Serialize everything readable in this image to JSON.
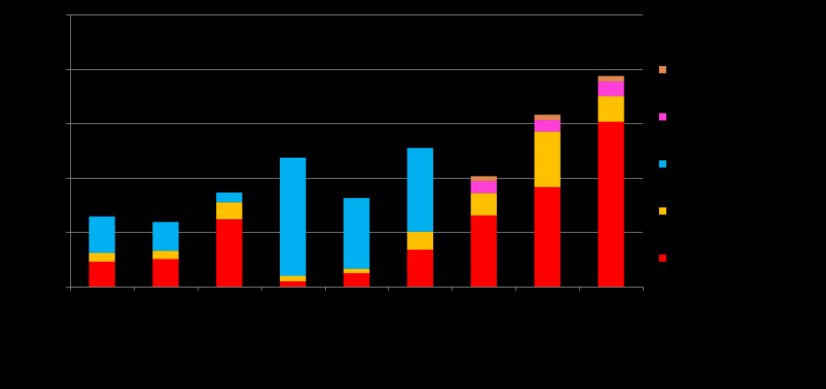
{
  "chart_data": {
    "type": "bar",
    "stacked": true,
    "title": "",
    "xlabel": "",
    "ylabel": "",
    "categories": [
      "",
      "",
      "",
      "",
      "",
      "",
      "",
      "",
      ""
    ],
    "ylim": [
      0,
      5
    ],
    "yticks": [
      0,
      1,
      2,
      3,
      4,
      5
    ],
    "grid": true,
    "legend_position": "right",
    "series": [
      {
        "color": "#ff0000",
        "values": [
          0.46,
          0.51,
          1.24,
          0.1,
          0.25,
          0.68,
          1.31,
          1.83,
          3.03
        ]
      },
      {
        "color": "#ffc000",
        "values": [
          0.16,
          0.15,
          0.31,
          0.1,
          0.08,
          0.33,
          0.41,
          1.02,
          0.47
        ]
      },
      {
        "color": "#00b0f0",
        "values": [
          0.67,
          0.53,
          0.18,
          2.17,
          1.3,
          1.54,
          0,
          0,
          0
        ]
      },
      {
        "color": "#ff3fd8",
        "values": [
          0,
          0,
          0,
          0,
          0,
          0,
          0.22,
          0.21,
          0.27
        ]
      },
      {
        "color": "#e0884f",
        "values": [
          0,
          0,
          0,
          0,
          0,
          0,
          0.09,
          0.1,
          0.1
        ]
      }
    ],
    "legend_order": [
      4,
      3,
      2,
      1,
      0
    ]
  }
}
